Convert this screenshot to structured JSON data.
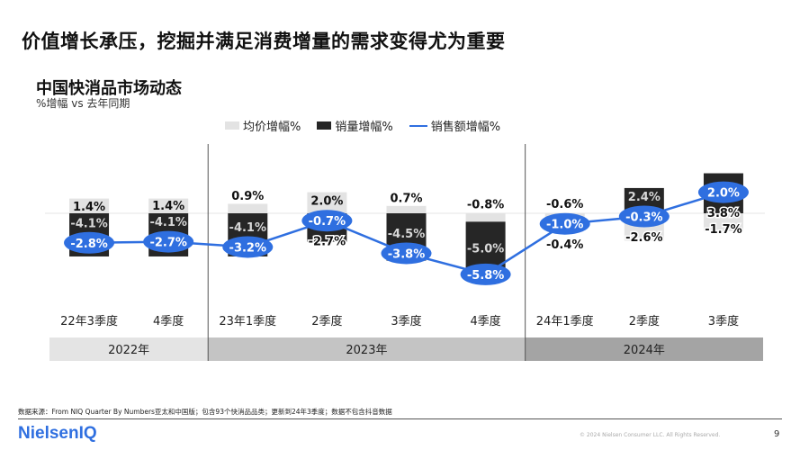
{
  "headline": "价值增长承压，挖掘并满足消费增量的需求变得尤为重要",
  "chart_data": {
    "type": "bar",
    "title": "中国快消品市场动态",
    "subtitle": "%增幅 vs 去年同期",
    "categories": [
      "22年3季度",
      "4季度",
      "23年1季度",
      "2季度",
      "3季度",
      "4季度",
      "24年1季度",
      "2季度",
      "3季度"
    ],
    "years": [
      {
        "label": "2022年",
        "span": 2,
        "color": "#e4e4e4"
      },
      {
        "label": "2023年",
        "span": 4,
        "color": "#c4c4c4"
      },
      {
        "label": "2024年",
        "span": 3,
        "color": "#a4a4a4"
      }
    ],
    "series": [
      {
        "name": "均价增幅%",
        "type": "bar",
        "color": "#e3e3e3",
        "values": [
          1.4,
          1.4,
          0.9,
          2.0,
          0.7,
          -0.8,
          -0.6,
          -2.6,
          -1.7
        ]
      },
      {
        "name": "销量增幅%",
        "type": "bar",
        "color": "#262626",
        "values": [
          -4.1,
          -4.1,
          -4.1,
          -2.7,
          -4.5,
          -5.0,
          -0.4,
          2.4,
          3.8
        ]
      },
      {
        "name": "销售额增幅%",
        "type": "line",
        "color": "#2f6fe0",
        "values": [
          -2.8,
          -2.7,
          -3.2,
          -0.7,
          -3.8,
          -5.8,
          -1.0,
          -0.3,
          2.0
        ]
      }
    ],
    "stacked": true,
    "legend": "top",
    "unit": "%"
  },
  "footer": {
    "source": "数据来源：From NIQ Quarter By Numbers亚太和中国版；包含93个快消品品类；更新到24年3季度；数据不包含抖音数据",
    "logo": "NielsenIQ",
    "copyright": "© 2024 Nielsen Consumer LLC. All Rights Reserved.",
    "page": "9"
  }
}
